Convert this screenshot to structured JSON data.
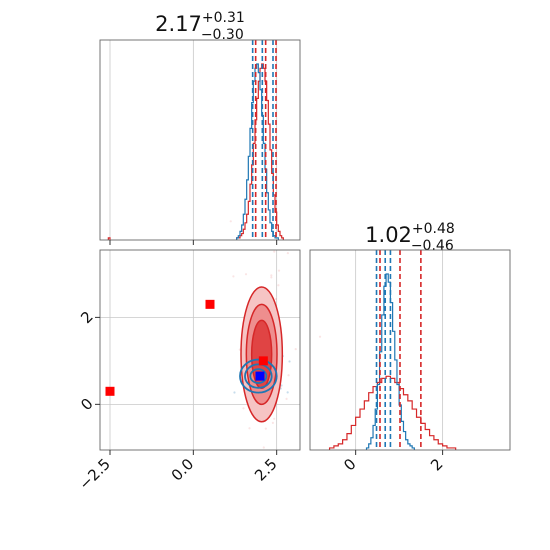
{
  "colors": {
    "red": "#d62728",
    "blue": "#1f77b4",
    "red_marker": "#ff0000",
    "blue_marker": "#0000ff",
    "red_fill_1": "#f6c4c4",
    "red_fill_2": "#ee8e8e",
    "red_fill_3": "#e04444",
    "grid": "#c8c8c8"
  },
  "chart_data": [
    {
      "type": "histogram",
      "panel": "top-left",
      "parameter_index": 0,
      "title": {
        "value": "2.17",
        "plus": "+0.31",
        "minus": "−0.30"
      },
      "xlim": [
        -2.8,
        3.2
      ],
      "grid_x": [
        -2.5,
        0.0,
        2.5
      ],
      "grid": true,
      "series": [
        {
          "color": "#d62728",
          "bins_start": 1.3,
          "bin_width": 0.05,
          "counts": [
            1,
            1,
            2,
            3,
            5,
            8,
            12,
            18,
            26,
            35,
            45,
            56,
            66,
            74,
            80,
            82,
            80,
            74,
            65,
            54,
            42,
            31,
            21,
            13,
            7,
            4,
            2,
            1
          ],
          "low_bin": {
            "x": -2.55,
            "count": 1
          },
          "quantiles": [
            1.87,
            2.17,
            2.48
          ]
        },
        {
          "color": "#1f77b4",
          "bins_start": 1.3,
          "bin_width": 0.05,
          "counts": [
            1,
            2,
            4,
            7,
            12,
            19,
            28,
            39,
            52,
            64,
            74,
            80,
            82,
            78,
            70,
            58,
            45,
            33,
            22,
            14,
            8,
            4,
            2,
            1,
            1
          ],
          "quantiles": [
            1.78,
            2.07,
            2.39
          ]
        }
      ]
    },
    {
      "type": "contour",
      "panel": "bottom-left",
      "xlim": [
        -2.8,
        3.2
      ],
      "ylim": [
        -1.05,
        3.55
      ],
      "xticks": [
        -2.5,
        0.0,
        2.5
      ],
      "xtick_labels": [
        "−2.5",
        "0.0",
        "2.5"
      ],
      "yticks": [
        0,
        2
      ],
      "ytick_labels": [
        "0",
        "2"
      ],
      "grid": true,
      "red_contours": {
        "center": [
          2.05,
          1.15
        ],
        "levels": [
          {
            "rx": 0.62,
            "ry": 1.55,
            "fill": "#f6c4c4"
          },
          {
            "rx": 0.46,
            "ry": 1.15,
            "fill": "#ee8e8e"
          },
          {
            "rx": 0.3,
            "ry": 0.78,
            "fill": "#e04444"
          }
        ]
      },
      "blue_contours": {
        "center": [
          1.95,
          0.65
        ],
        "levels": [
          {
            "rx": 0.55,
            "ry": 0.38
          },
          {
            "rx": 0.4,
            "ry": 0.27
          },
          {
            "rx": 0.24,
            "ry": 0.16
          }
        ]
      },
      "red_markers": [
        [
          -2.5,
          0.3
        ],
        [
          0.5,
          2.3
        ],
        [
          2.1,
          1.0
        ]
      ],
      "blue_markers": [
        [
          2.0,
          0.65
        ]
      ]
    },
    {
      "type": "histogram",
      "panel": "bottom-right",
      "parameter_index": 1,
      "title": {
        "value": "1.02",
        "plus": "+0.48",
        "minus": "−0.46"
      },
      "xlim": [
        -1.05,
        3.55
      ],
      "xticks": [
        0,
        2
      ],
      "xtick_labels": [
        "0",
        "2"
      ],
      "grid": true,
      "series": [
        {
          "color": "#d62728",
          "bins_start": -0.6,
          "bin_width": 0.1,
          "counts": [
            1,
            2,
            3,
            5,
            8,
            12,
            16,
            20,
            24,
            28,
            31,
            33,
            35,
            36,
            35,
            33,
            30,
            27,
            24,
            20,
            16,
            13,
            10,
            7,
            5,
            3,
            2,
            1,
            1
          ],
          "quantiles": [
            0.56,
            1.02,
            1.5
          ]
        },
        {
          "color": "#1f77b4",
          "bins_start": 0.25,
          "bin_width": 0.05,
          "counts": [
            1,
            3,
            6,
            12,
            20,
            32,
            48,
            66,
            80,
            86,
            82,
            72,
            58,
            44,
            32,
            22,
            14,
            9,
            5,
            3,
            2,
            1
          ],
          "quantiles": [
            0.48,
            0.68,
            0.8
          ]
        }
      ]
    }
  ]
}
